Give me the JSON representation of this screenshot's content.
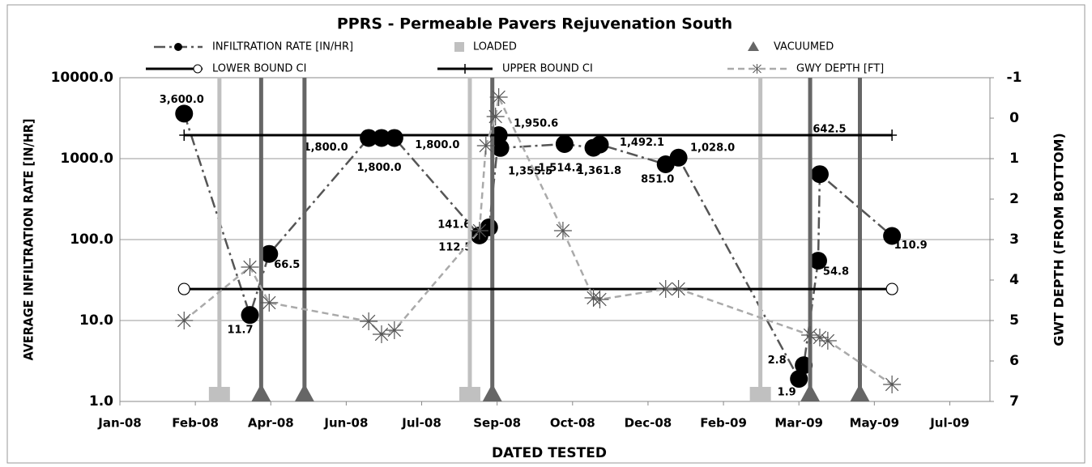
{
  "chart_data": {
    "type": "line",
    "title": "PPRS - Permeable Pavers Rejuvenation South",
    "x_label": "DATED TESTED",
    "y_label": "AVERAGE INFILTRATION RATE [IN/HR]",
    "y2_label": "GWT DEPTH  (FROM BOTTOM)",
    "xlim": [
      39448,
      39990
    ],
    "xticks": [
      {
        "value": 39448,
        "label": "Jan-08"
      },
      {
        "value": 39495,
        "label": "Feb-08"
      },
      {
        "value": 39542,
        "label": "Apr-08"
      },
      {
        "value": 39589,
        "label": "Jun-08"
      },
      {
        "value": 39636,
        "label": "Jul-08"
      },
      {
        "value": 39683,
        "label": "Sep-08"
      },
      {
        "value": 39730,
        "label": "Oct-08"
      },
      {
        "value": 39777,
        "label": "Dec-08"
      },
      {
        "value": 39824,
        "label": "Feb-09"
      },
      {
        "value": 39871,
        "label": "Mar-09"
      },
      {
        "value": 39918,
        "label": "May-09"
      },
      {
        "value": 39965,
        "label": "Jul-09"
      }
    ],
    "ylim": [
      1,
      10000
    ],
    "y_log": true,
    "yticks": [
      {
        "value": 1,
        "label": "1.0"
      },
      {
        "value": 10,
        "label": "10.0"
      },
      {
        "value": 100,
        "label": "100.0"
      },
      {
        "value": 1000,
        "label": "1000.0"
      },
      {
        "value": 10000,
        "label": "10000.0"
      }
    ],
    "y2lim": [
      -1,
      7
    ],
    "y2_reversed": true,
    "y2ticks": [
      -1,
      0,
      1,
      2,
      3,
      4,
      5,
      6,
      7
    ],
    "series": [
      {
        "name": "INFILTRATION RATE [IN/HR]",
        "kind": "dashdot-dots",
        "color": "#555555",
        "x": [
          39488,
          39529,
          39541,
          39603,
          39611,
          39619,
          39672,
          39678,
          39684,
          39685,
          39725,
          39743,
          39747,
          39788,
          39796,
          39871,
          39874,
          39883,
          39884,
          39929
        ],
        "values": [
          3600,
          11.7,
          66.5,
          1800,
          1800,
          1800,
          112.5,
          141.6,
          1950.6,
          1355.5,
          1514.2,
          1361.8,
          1492.1,
          851,
          1028,
          1.9,
          2.8,
          54.8,
          642.5,
          110.9
        ],
        "value_labels": [
          "3,600.0",
          "11.7",
          "66.5",
          "1,800.0",
          "1,800.0",
          "1,800.0",
          "112.5",
          "141.6",
          "1,950.6",
          "1,355.5",
          "1,514.2",
          "1,361.8",
          "1,492.1",
          "851.0",
          "1,028.0",
          "1.9",
          "2.8",
          "54.8",
          "642.5",
          "110.9"
        ]
      },
      {
        "name": "LOADED",
        "kind": "vline-square",
        "color": "#c0c0c0",
        "x": [
          39510,
          39666,
          39847
        ]
      },
      {
        "name": "VACUUMED",
        "kind": "vline-triangle",
        "color": "#666666",
        "x": [
          39536,
          39563,
          39680,
          39878,
          39909
        ]
      },
      {
        "name": "LOWER BOUND CI",
        "kind": "solid-circle",
        "color": "#000000",
        "x": [
          39488,
          39929
        ],
        "values": [
          24.5,
          24.5
        ]
      },
      {
        "name": "UPPER BOUND CI",
        "kind": "solid-plus",
        "color": "#000000",
        "x": [
          39488,
          39929
        ],
        "values": [
          1950,
          1950
        ]
      },
      {
        "name": "GWY DEPTH [FT]",
        "kind": "dashed-star",
        "color": "#aaaaaa",
        "axis": "y2",
        "x": [
          39488,
          39529,
          39541,
          39603,
          39611,
          39619,
          39672,
          39676,
          39682,
          39684,
          39724,
          39743,
          39747,
          39788,
          39796,
          39878,
          39884,
          39889,
          39929
        ],
        "values": [
          5.0,
          3.68,
          4.56,
          5.02,
          5.34,
          5.24,
          2.78,
          0.68,
          -0.04,
          -0.52,
          2.78,
          4.44,
          4.48,
          4.22,
          4.22,
          5.36,
          5.42,
          5.5,
          6.58
        ]
      }
    ]
  }
}
